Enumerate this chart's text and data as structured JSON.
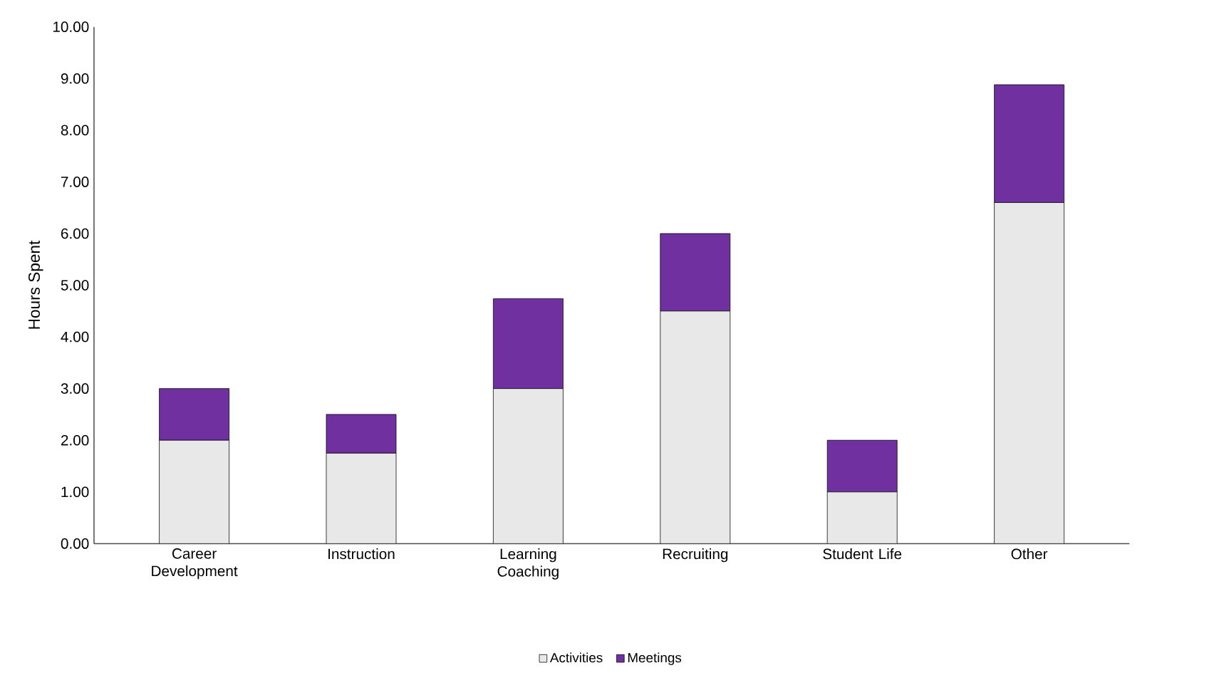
{
  "chart_data": {
    "type": "bar",
    "stacked": true,
    "ylabel": "Hours Spent",
    "categories": [
      "Career Development",
      "Instruction",
      "Learning Coaching",
      "Recruiting",
      "Student Life",
      "Other"
    ],
    "series": [
      {
        "name": "Activities",
        "color": "#e8e8e8",
        "values": [
          2.0,
          1.75,
          3.0,
          4.5,
          1.0,
          6.6
        ]
      },
      {
        "name": "Meetings",
        "color": "#7030a0",
        "values": [
          1.0,
          0.75,
          1.74,
          1.5,
          1.0,
          2.28
        ]
      }
    ],
    "ylim": [
      0,
      10
    ],
    "yticks": [
      {
        "value": 0,
        "label": "0.00"
      },
      {
        "value": 1,
        "label": "1.00"
      },
      {
        "value": 2,
        "label": "2.00"
      },
      {
        "value": 3,
        "label": "3.00"
      },
      {
        "value": 4,
        "label": "4.00"
      },
      {
        "value": 5,
        "label": "5.00"
      },
      {
        "value": 6,
        "label": "6.00"
      },
      {
        "value": 7,
        "label": "7.00"
      },
      {
        "value": 8,
        "label": "8.00"
      },
      {
        "value": 9,
        "label": "9.00"
      },
      {
        "value": 10,
        "label": "10.00"
      }
    ],
    "grid": false,
    "legend": "bottom"
  }
}
